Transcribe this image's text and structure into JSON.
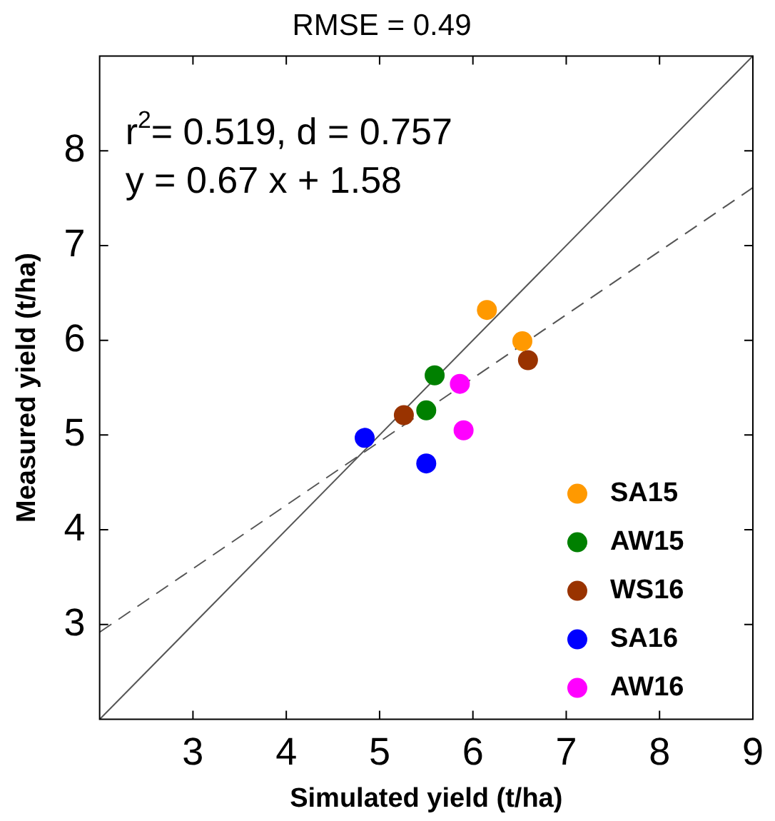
{
  "chart_data": {
    "type": "scatter",
    "title": "RMSE = 0.49",
    "xlabel": "Simulated yield (t/ha)",
    "ylabel": "Measured yield (t/ha)",
    "annotations": [
      "r$^{2}$= 0.519, d = 0.757",
      "y = 0.67 x + 1.58"
    ],
    "xlim": [
      2,
      9
    ],
    "ylim": [
      2,
      9
    ],
    "xticks": [
      3,
      4,
      5,
      6,
      7,
      8,
      9
    ],
    "yticks": [
      3,
      4,
      5,
      6,
      7,
      8
    ],
    "grid": false,
    "legend": "bottom right",
    "marker": "circle",
    "series": [
      {
        "name": "SA15",
        "color": "#ff9900",
        "x": [
          6.15,
          6.53
        ],
        "values": [
          6.32,
          5.99
        ]
      },
      {
        "name": "AW15",
        "color": "#008000",
        "x": [
          5.59,
          5.5
        ],
        "values": [
          5.63,
          5.26
        ]
      },
      {
        "name": "WS16",
        "color": "#993300",
        "x": [
          5.26,
          6.59
        ],
        "values": [
          5.21,
          5.79
        ]
      },
      {
        "name": "SA16",
        "color": "#0000ff",
        "x": [
          4.84,
          5.5
        ],
        "values": [
          4.97,
          4.7
        ]
      },
      {
        "name": "AW16",
        "color": "#ff00ff",
        "x": [
          5.86,
          5.9
        ],
        "values": [
          5.54,
          5.05
        ]
      },
      {
        "type": "line",
        "color": "#555555",
        "line_style": "solid",
        "marker": "none",
        "x": [
          2,
          9
        ],
        "values": [
          2,
          9
        ]
      },
      {
        "type": "line",
        "color": "#555555",
        "line_style": "dashed",
        "marker": "none",
        "x": [
          2,
          9
        ],
        "values": [
          2.92,
          7.61
        ]
      }
    ]
  }
}
